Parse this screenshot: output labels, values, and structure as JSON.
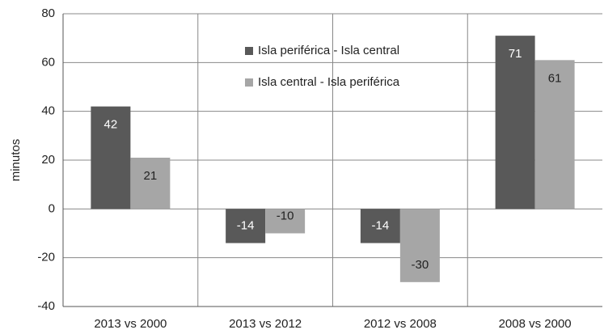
{
  "chart_data": {
    "type": "bar",
    "ylabel": "minutos",
    "categories": [
      "2013 vs 2000",
      "2013 vs 2012",
      "2012 vs 2008",
      "2008 vs 2000"
    ],
    "series": [
      {
        "name": "Isla periférica - Isla central",
        "color": "#595959",
        "values": [
          42,
          -14,
          -14,
          71
        ]
      },
      {
        "name": "Isla central - Isla periférica",
        "color": "#a6a6a6",
        "values": [
          21,
          -10,
          -30,
          61
        ]
      }
    ],
    "ylim": [
      -40,
      80
    ],
    "yticks": [
      -40,
      -20,
      0,
      20,
      40,
      60,
      80
    ],
    "grid": true
  }
}
